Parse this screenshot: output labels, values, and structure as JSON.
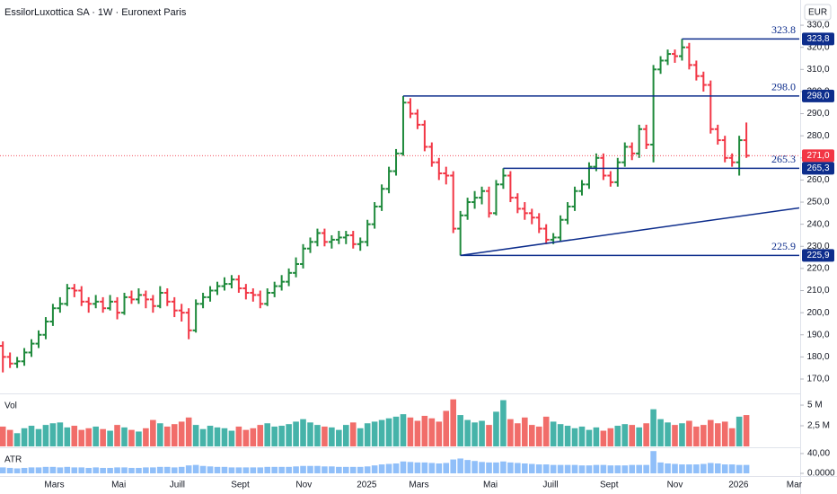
{
  "header": {
    "title": "EssilorLuxottica SA · 1W · Euronext Paris",
    "currency": "EUR"
  },
  "chart_data": [
    {
      "type": "ohlc",
      "xlim": [
        -0.4,
        111.4
      ],
      "xticks": [
        {
          "value": 7.2,
          "label": "Mars"
        },
        {
          "value": 16.2,
          "label": "Mai"
        },
        {
          "value": 24.4,
          "label": "Juill"
        },
        {
          "value": 33.2,
          "label": "Sept"
        },
        {
          "value": 42.1,
          "label": "Nov"
        },
        {
          "value": 50.9,
          "label": "2025"
        },
        {
          "value": 58.2,
          "label": "Mars"
        },
        {
          "value": 68.2,
          "label": "Mai"
        },
        {
          "value": 76.6,
          "label": "Juill"
        },
        {
          "value": 84.8,
          "label": "Sept"
        },
        {
          "value": 94.0,
          "label": "Nov"
        },
        {
          "value": 102.9,
          "label": "2026"
        },
        {
          "value": 110.7,
          "label": "Mar"
        }
      ],
      "ylim": [
        163.5,
        341.4
      ],
      "yticks": [
        {
          "value": 170,
          "label": "170,0"
        },
        {
          "value": 180,
          "label": "180,0"
        },
        {
          "value": 190,
          "label": "190,0"
        },
        {
          "value": 200,
          "label": "200,0"
        },
        {
          "value": 210,
          "label": "210,0"
        },
        {
          "value": 220,
          "label": "220,0"
        },
        {
          "value": 230,
          "label": "230,0"
        },
        {
          "value": 240,
          "label": "240,0"
        },
        {
          "value": 250,
          "label": "250,0"
        },
        {
          "value": 260,
          "label": "260,0"
        },
        {
          "value": 270,
          "label": "270,0"
        },
        {
          "value": 280,
          "label": "280,0"
        },
        {
          "value": 290,
          "label": "290,0"
        },
        {
          "value": 300,
          "label": "300,0"
        },
        {
          "value": 310,
          "label": "310,0"
        },
        {
          "value": 320,
          "label": "320,0"
        },
        {
          "value": 330,
          "label": "330,0"
        }
      ],
      "open": [
        185,
        180,
        177,
        178,
        182,
        186,
        190,
        196,
        202,
        204,
        211,
        210,
        205,
        204,
        205,
        202,
        205,
        200,
        207,
        206,
        208,
        206,
        203,
        209,
        205,
        201,
        200,
        192,
        204,
        207,
        210,
        212,
        213,
        215,
        211,
        209,
        208,
        204,
        209,
        212,
        214,
        218,
        222,
        229,
        232,
        236,
        232,
        233,
        234,
        235,
        231,
        232,
        240,
        248,
        256,
        264,
        272,
        295,
        290,
        285,
        275,
        268,
        263,
        262,
        238,
        244,
        250,
        252,
        255,
        245,
        258,
        262,
        252,
        247,
        245,
        243,
        238,
        233,
        234,
        242,
        248,
        255,
        258,
        266,
        270,
        262,
        259,
        268,
        275,
        272,
        283,
        276,
        310,
        314,
        317,
        316,
        320,
        312,
        307,
        303,
        283,
        278,
        270,
        268,
        278
      ],
      "high": [
        187,
        182,
        180,
        184,
        188,
        192,
        198,
        204,
        207,
        213,
        213,
        212,
        207,
        208,
        207,
        208,
        207,
        209,
        210,
        211,
        210,
        208,
        212,
        211,
        207,
        204,
        202,
        206,
        209,
        212,
        214,
        216,
        217,
        217,
        213,
        211,
        210,
        211,
        214,
        217,
        220,
        225,
        231,
        234,
        238,
        238,
        235,
        237,
        237,
        237,
        234,
        242,
        250,
        258,
        266,
        274,
        298,
        297,
        292,
        287,
        277,
        270,
        266,
        264,
        246,
        252,
        255,
        257,
        257,
        260,
        265.3,
        264,
        254,
        250,
        247,
        245,
        240,
        236,
        244,
        250,
        257,
        260,
        268,
        272,
        272,
        264,
        270,
        277,
        277,
        285,
        285,
        312,
        316,
        319,
        319,
        323.8,
        322,
        314,
        309,
        305,
        285,
        280,
        272,
        280,
        286
      ],
      "low": [
        173,
        175,
        175,
        176,
        180,
        184,
        188,
        194,
        200,
        203,
        207,
        203,
        200,
        202,
        200,
        201,
        197,
        199,
        204,
        204,
        202,
        200,
        202,
        203,
        198,
        196,
        188,
        191,
        202,
        205,
        208,
        210,
        211,
        209,
        206,
        205,
        202,
        203,
        207,
        210,
        212,
        216,
        220,
        227,
        230,
        230,
        229,
        231,
        231,
        229,
        228,
        230,
        238,
        246,
        254,
        262,
        271,
        288,
        283,
        273,
        266,
        260,
        258,
        236,
        225.9,
        242,
        247,
        249,
        243,
        244,
        256,
        250,
        245,
        242,
        240,
        236,
        231,
        231,
        232,
        240,
        246,
        253,
        256,
        264,
        260,
        257,
        257,
        266,
        269,
        270,
        274,
        268,
        308,
        312,
        313,
        314,
        310,
        305,
        300,
        281,
        276,
        268,
        266,
        262,
        270
      ],
      "close": [
        180,
        177,
        178,
        182,
        186,
        190,
        196,
        202,
        204,
        211,
        210,
        205,
        204,
        205,
        202,
        205,
        200,
        207,
        206,
        208,
        206,
        203,
        209,
        205,
        201,
        200,
        192,
        204,
        207,
        210,
        212,
        213,
        215,
        211,
        209,
        208,
        204,
        209,
        212,
        214,
        218,
        222,
        229,
        232,
        236,
        232,
        233,
        234,
        235,
        231,
        232,
        240,
        248,
        256,
        264,
        272,
        295,
        290,
        285,
        275,
        268,
        263,
        262,
        238,
        244,
        250,
        252,
        255,
        245,
        258,
        262,
        252,
        247,
        245,
        243,
        238,
        233,
        234,
        242,
        248,
        255,
        258,
        266,
        270,
        262,
        259,
        268,
        275,
        272,
        283,
        276,
        310,
        314,
        317,
        316,
        320,
        312,
        307,
        303,
        283,
        278,
        270,
        268,
        278,
        271
      ],
      "up_color": "#1f8a3c",
      "down_color": "#f23645",
      "level_color": "#0d2d8c",
      "levels": [
        {
          "value": 323.8,
          "label": "323.8",
          "axis_label": "323,8",
          "start": 95
        },
        {
          "value": 298.0,
          "label": "298.0",
          "axis_label": "298,0",
          "start": 56
        },
        {
          "value": 265.3,
          "label": "265.3",
          "axis_label": "265,3",
          "start": 70
        },
        {
          "value": 225.9,
          "label": "225.9",
          "axis_label": "225,9",
          "start": 64
        }
      ],
      "trendline": {
        "start": {
          "x": 64,
          "y": 225.9
        },
        "end": {
          "x": 111.4,
          "y": 247.4
        }
      },
      "last_price": {
        "value": 271.0,
        "label": "271,0",
        "color": "#f23645"
      }
    },
    {
      "type": "bar",
      "title": "Vol",
      "ylim": [
        0,
        6.2
      ],
      "yticks": [
        {
          "value": 5,
          "label": "5 M"
        },
        {
          "value": 2.5,
          "label": "2,5 M"
        }
      ],
      "up_color": "#26a69a",
      "down_color": "#ef5350",
      "values": [
        2.4,
        2.0,
        1.6,
        2.2,
        2.5,
        2.1,
        2.6,
        2.8,
        2.9,
        2.3,
        2.5,
        2.0,
        2.2,
        2.4,
        2.1,
        1.9,
        2.6,
        2.3,
        2.0,
        1.8,
        2.2,
        3.2,
        2.8,
        2.4,
        2.7,
        3.0,
        3.5,
        2.6,
        2.1,
        2.5,
        2.3,
        2.2,
        1.9,
        2.4,
        2.0,
        2.2,
        2.6,
        2.8,
        2.4,
        2.5,
        2.7,
        3.0,
        3.3,
        2.9,
        2.6,
        2.4,
        2.3,
        2.0,
        2.6,
        2.9,
        2.2,
        2.8,
        3.0,
        3.2,
        3.4,
        3.6,
        3.9,
        3.5,
        3.1,
        3.7,
        3.4,
        3.0,
        4.3,
        5.7,
        3.8,
        3.2,
        2.9,
        3.1,
        2.6,
        4.2,
        5.6,
        3.3,
        2.8,
        3.5,
        2.6,
        2.4,
        3.6,
        3.0,
        2.7,
        2.5,
        2.2,
        2.4,
        2.0,
        2.3,
        1.9,
        2.2,
        2.5,
        2.7,
        2.6,
        2.3,
        2.8,
        4.5,
        3.3,
        2.9,
        2.6,
        2.8,
        3.1,
        2.4,
        2.6,
        3.2,
        2.8,
        3.0,
        2.2,
        3.6,
        3.8
      ]
    },
    {
      "type": "bar",
      "title": "ATR",
      "ylim": [
        0,
        49
      ],
      "yticks": [
        {
          "value": 40,
          "label": "40,00"
        },
        {
          "value": 0,
          "label": "0.0000"
        }
      ],
      "color": "#90bff9",
      "values": [
        12,
        11,
        10,
        11,
        12,
        12,
        13,
        13,
        12,
        13,
        12,
        12,
        11,
        12,
        11,
        11,
        12,
        12,
        11,
        11,
        12,
        12,
        13,
        13,
        12,
        13,
        16,
        17,
        15,
        14,
        13,
        13,
        12,
        12,
        12,
        12,
        12,
        13,
        13,
        13,
        13,
        14,
        15,
        15,
        15,
        14,
        14,
        13,
        13,
        13,
        13,
        14,
        16,
        18,
        19,
        20,
        24,
        23,
        22,
        22,
        21,
        20,
        21,
        28,
        30,
        27,
        25,
        23,
        22,
        22,
        24,
        22,
        21,
        20,
        19,
        18,
        18,
        17,
        17,
        17,
        17,
        16,
        16,
        17,
        17,
        16,
        16,
        16,
        17,
        17,
        17,
        45,
        22,
        20,
        19,
        18,
        18,
        18,
        19,
        21,
        20,
        18,
        18,
        17,
        17
      ]
    }
  ]
}
